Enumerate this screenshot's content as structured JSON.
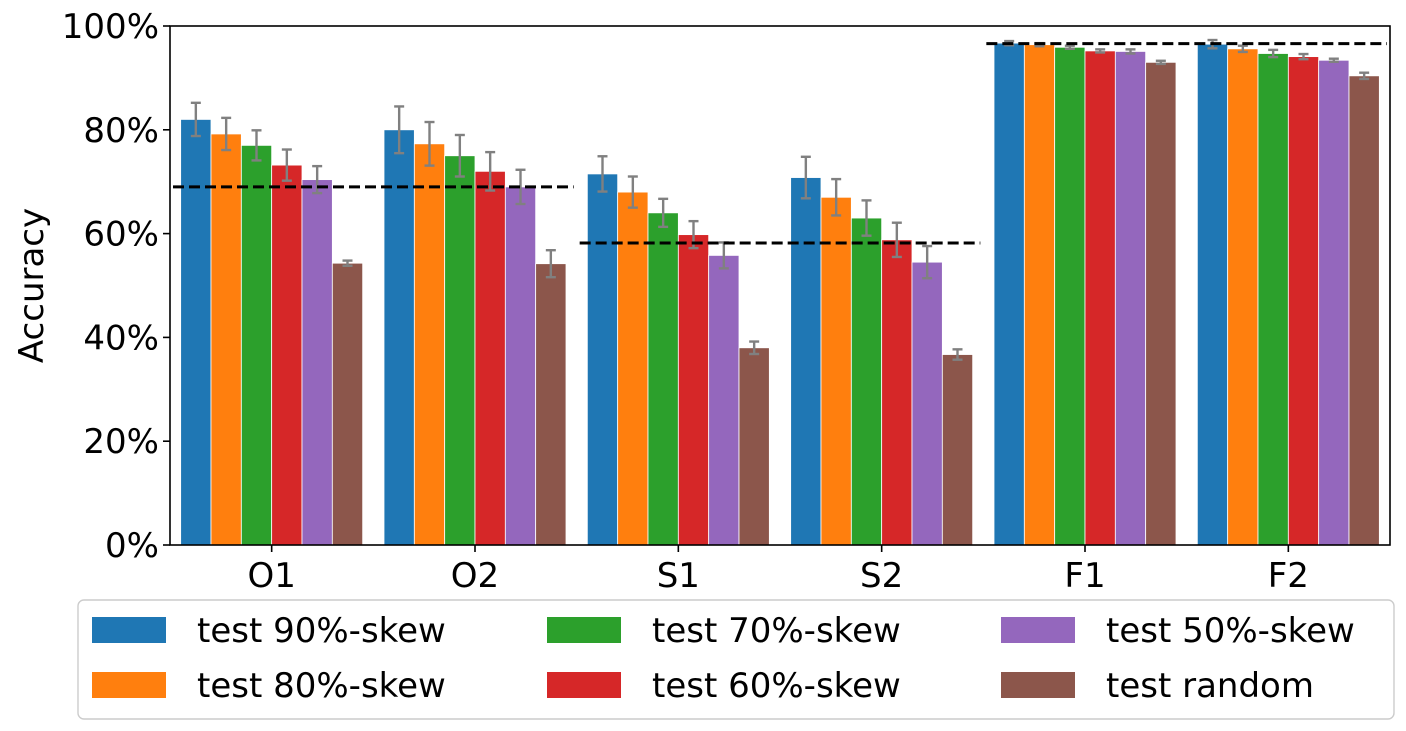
{
  "chart_data": {
    "type": "bar",
    "ylabel": "Accuracy",
    "ylim": [
      0,
      100
    ],
    "yticks": [
      "0%",
      "20%",
      "40%",
      "60%",
      "80%",
      "100%"
    ],
    "categories": [
      "O1",
      "O2",
      "S1",
      "S2",
      "F1",
      "F2"
    ],
    "series": [
      {
        "name": "test 90%-skew",
        "color": "#1f77b4",
        "values": [
          82.0,
          80.0,
          71.5,
          70.8,
          96.7,
          96.5
        ],
        "errors": [
          3.2,
          4.5,
          3.4,
          4.0,
          0.4,
          0.8
        ]
      },
      {
        "name": "test 80%-skew",
        "color": "#ff7f0e",
        "values": [
          79.2,
          77.3,
          68.0,
          67.0,
          96.4,
          95.6
        ],
        "errors": [
          3.1,
          4.2,
          3.0,
          3.5,
          0.3,
          0.6
        ]
      },
      {
        "name": "test 70%-skew",
        "color": "#2ca02c",
        "values": [
          77.0,
          75.0,
          64.0,
          63.0,
          95.9,
          94.7
        ],
        "errors": [
          2.9,
          4.0,
          2.7,
          3.4,
          0.3,
          0.7
        ]
      },
      {
        "name": "test 60%-skew",
        "color": "#d62728",
        "values": [
          73.2,
          72.0,
          59.8,
          58.8,
          95.2,
          94.1
        ],
        "errors": [
          3.0,
          3.7,
          2.6,
          3.3,
          0.3,
          0.5
        ]
      },
      {
        "name": "test 50%-skew",
        "color": "#9467bd",
        "values": [
          70.4,
          69.0,
          55.8,
          54.5,
          95.1,
          93.4
        ],
        "errors": [
          2.6,
          3.3,
          2.5,
          3.1,
          0.4,
          0.3
        ]
      },
      {
        "name": "test random",
        "color": "#8c564b",
        "values": [
          54.3,
          54.2,
          38.0,
          36.7,
          93.0,
          90.4
        ],
        "errors": [
          0.5,
          2.6,
          1.2,
          1.0,
          0.3,
          0.6
        ]
      }
    ],
    "reference_lines": [
      {
        "from_category": 0,
        "to_category": 1,
        "value": 69.0
      },
      {
        "from_category": 2,
        "to_category": 3,
        "value": 58.2
      },
      {
        "from_category": 4,
        "to_category": 5,
        "value": 96.6
      }
    ],
    "legend": {
      "placement": "bottom",
      "columns": 3
    },
    "grid": false
  }
}
